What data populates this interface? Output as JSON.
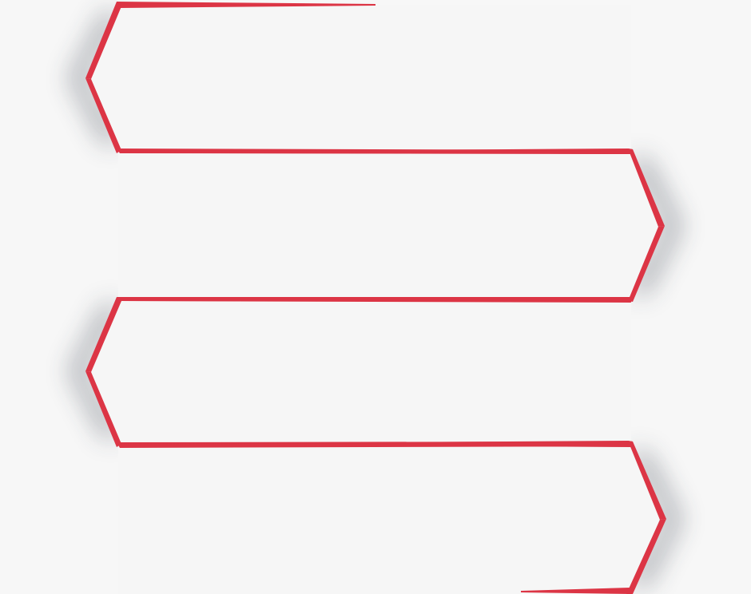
{
  "colors": {
    "background": "#f7f7f7",
    "outline": "#dc3545",
    "panel_fill": "#f6f6f6",
    "shadow": "#3b4350"
  },
  "segments": [
    {
      "id": "segment-1",
      "pointer": "left",
      "text": ""
    },
    {
      "id": "segment-2",
      "pointer": "right",
      "text": ""
    },
    {
      "id": "segment-3",
      "pointer": "left",
      "text": ""
    },
    {
      "id": "segment-4",
      "pointer": "right",
      "text": ""
    }
  ]
}
